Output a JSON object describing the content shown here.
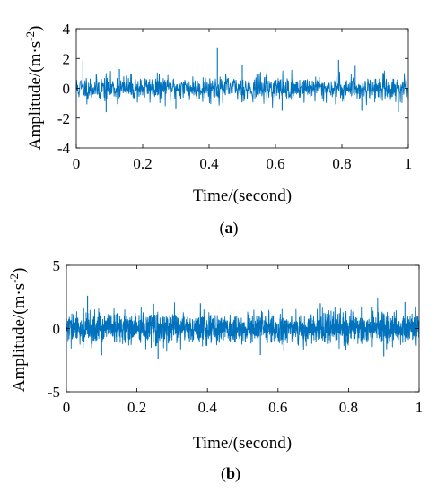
{
  "chart_data": [
    {
      "type": "line",
      "panel_caption": "a",
      "xlabel": "Time/(second)",
      "ylabel": {
        "base": "Amplitude/(m·s",
        "sup": "-2",
        "close": ")"
      },
      "xlim": [
        0,
        1
      ],
      "ylim": [
        -4,
        4
      ],
      "xticks": [
        0,
        0.2,
        0.4,
        0.6,
        0.8,
        1
      ],
      "xtick_labels": [
        "0",
        "0.2",
        "0.4",
        "0.6",
        "0.8",
        "1"
      ],
      "yticks": [
        -4,
        -2,
        0,
        2,
        4
      ],
      "ytick_labels": [
        "-4",
        "-2",
        "0",
        "2",
        "4"
      ],
      "grid": false,
      "line_color": "#0072BD",
      "signal": {
        "samples": 1000,
        "std": 0.42,
        "seed": 11,
        "spikes": [
          {
            "x": 0.02,
            "y": 1.8
          },
          {
            "x": 0.09,
            "y": -1.6
          },
          {
            "x": 0.13,
            "y": 1.3
          },
          {
            "x": 0.3,
            "y": -1.4
          },
          {
            "x": 0.425,
            "y": 2.75
          },
          {
            "x": 0.5,
            "y": 1.6
          },
          {
            "x": 0.62,
            "y": -1.5
          },
          {
            "x": 0.79,
            "y": 1.9
          },
          {
            "x": 0.84,
            "y": 1.5
          },
          {
            "x": 0.86,
            "y": -1.5
          },
          {
            "x": 0.97,
            "y": -1.6
          }
        ]
      }
    },
    {
      "type": "line",
      "panel_caption": "b",
      "xlabel": "Time/(second)",
      "ylabel": {
        "base": "Amplitude/(m·s",
        "sup": "-2",
        "close": ")"
      },
      "xlim": [
        0,
        1
      ],
      "ylim": [
        -5,
        5
      ],
      "xticks": [
        0,
        0.2,
        0.4,
        0.6,
        0.8,
        1
      ],
      "xtick_labels": [
        "0",
        "0.2",
        "0.4",
        "0.6",
        "0.8",
        "1"
      ],
      "yticks": [
        -5,
        0,
        5
      ],
      "ytick_labels": [
        "-5",
        "0",
        "5"
      ],
      "grid": false,
      "line_color": "#0072BD",
      "signal": {
        "samples": 2000,
        "std": 0.6,
        "seed": 29,
        "spikes": [
          {
            "x": 0.06,
            "y": 2.6
          },
          {
            "x": 0.1,
            "y": -2.1
          },
          {
            "x": 0.26,
            "y": -2.4
          },
          {
            "x": 0.38,
            "y": 2.0
          },
          {
            "x": 0.55,
            "y": -2.1
          },
          {
            "x": 0.72,
            "y": 2.0
          },
          {
            "x": 0.9,
            "y": -2.2
          },
          {
            "x": 0.96,
            "y": 2.1
          }
        ]
      }
    }
  ]
}
